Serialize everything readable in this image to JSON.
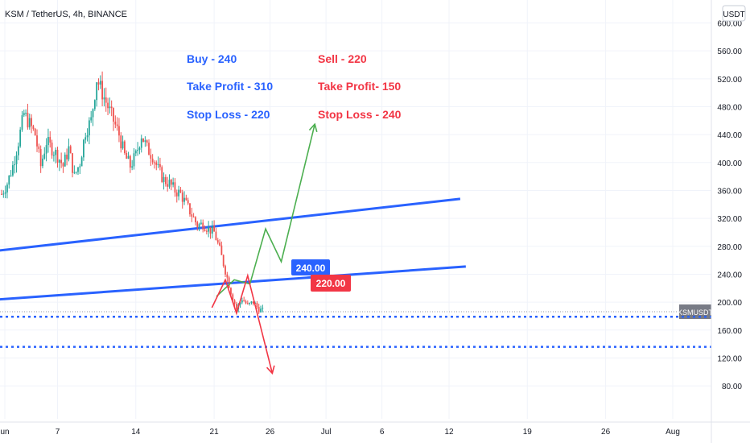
{
  "header": {
    "symbol_line": "KSM / TetherUS, 4h, BINANCE",
    "currency": "USDT"
  },
  "annotations": {
    "buy": [
      "Buy - 240",
      "Take Profit - 310",
      "Stop Loss - 220"
    ],
    "sell": [
      "Sell - 220",
      "Take Profit- 150",
      "Stop Loss - 240"
    ],
    "badge_blue": "240.00",
    "badge_red": "220.00"
  },
  "colors": {
    "up": "#26a69a",
    "down": "#ef5350",
    "blue": "#2962ff",
    "red": "#f23645",
    "green_path": "#4caf50",
    "trendline": "#2962ff",
    "dotted": "#2962ff"
  },
  "chart_data": {
    "type": "candlestick",
    "title": "KSM / TetherUS, 4h, BINANCE",
    "ylim": [
      70,
      620
    ],
    "y_ticks": [
      80,
      120,
      160,
      200,
      240,
      280,
      320,
      360,
      400,
      440,
      480,
      520,
      560,
      600
    ],
    "y_tick_labels": [
      "80.00",
      "120.00",
      "160.00",
      "200.00",
      "240.00",
      "280.00",
      "320.00",
      "360.00",
      "400.00",
      "440.00",
      "480.00",
      "520.00",
      "560.00",
      "600.00"
    ],
    "x_range_days": [
      -0.2,
      48
    ],
    "x_ticks": [
      {
        "day": 0,
        "label": "un"
      },
      {
        "day": 5,
        "label": "7"
      },
      {
        "day": 12,
        "label": "14"
      },
      {
        "day": 19,
        "label": "21"
      },
      {
        "day": 24,
        "label": "26"
      },
      {
        "day": 29,
        "label": "Jul"
      },
      {
        "day": 34,
        "label": "6"
      },
      {
        "day": 40,
        "label": "12"
      },
      {
        "day": 47,
        "label": "19"
      },
      {
        "day": 54,
        "label": "26"
      },
      {
        "day": 60,
        "label": "Aug"
      }
    ],
    "price_path": [
      {
        "day": 0,
        "price": 355
      },
      {
        "day": 0.5,
        "price": 370
      },
      {
        "day": 1,
        "price": 395
      },
      {
        "day": 1.5,
        "price": 430
      },
      {
        "day": 2,
        "price": 470
      },
      {
        "day": 2.5,
        "price": 455
      },
      {
        "day": 3,
        "price": 440
      },
      {
        "day": 3.5,
        "price": 395
      },
      {
        "day": 4,
        "price": 430
      },
      {
        "day": 4.5,
        "price": 420
      },
      {
        "day": 5,
        "price": 410
      },
      {
        "day": 5.5,
        "price": 395
      },
      {
        "day": 6,
        "price": 420
      },
      {
        "day": 6.5,
        "price": 380
      },
      {
        "day": 7,
        "price": 400
      },
      {
        "day": 7.5,
        "price": 445
      },
      {
        "day": 8,
        "price": 460
      },
      {
        "day": 8.5,
        "price": 520
      },
      {
        "day": 9,
        "price": 500
      },
      {
        "day": 9.5,
        "price": 480
      },
      {
        "day": 10,
        "price": 460
      },
      {
        "day": 10.5,
        "price": 440
      },
      {
        "day": 11,
        "price": 410
      },
      {
        "day": 11.5,
        "price": 395
      },
      {
        "day": 12,
        "price": 410
      },
      {
        "day": 12.5,
        "price": 440
      },
      {
        "day": 13,
        "price": 420
      },
      {
        "day": 13.5,
        "price": 410
      },
      {
        "day": 14,
        "price": 390
      },
      {
        "day": 14.5,
        "price": 375
      },
      {
        "day": 15,
        "price": 370
      },
      {
        "day": 15.5,
        "price": 360
      },
      {
        "day": 16,
        "price": 355
      },
      {
        "day": 16.5,
        "price": 340
      },
      {
        "day": 17,
        "price": 325
      },
      {
        "day": 17.5,
        "price": 310
      },
      {
        "day": 18,
        "price": 312
      },
      {
        "day": 18.5,
        "price": 305
      },
      {
        "day": 19,
        "price": 300
      },
      {
        "day": 19.5,
        "price": 275
      },
      {
        "day": 20,
        "price": 245
      },
      {
        "day": 20.5,
        "price": 215
      },
      {
        "day": 21,
        "price": 190
      },
      {
        "day": 21.5,
        "price": 205
      },
      {
        "day": 22,
        "price": 195
      },
      {
        "day": 22.5,
        "price": 200
      },
      {
        "day": 23,
        "price": 190
      },
      {
        "day": 23.5,
        "price": 186
      }
    ],
    "levels": [
      {
        "price": 186.25,
        "label": "186.25",
        "tag": "KSMUSDT",
        "style": "current"
      },
      {
        "price": 179.01,
        "label": "179.01",
        "style": "dotted"
      },
      {
        "price": 135.9,
        "label": "135.90",
        "style": "dotted"
      }
    ],
    "trendlines": [
      {
        "from": {
          "day": -0.2,
          "price": 274
        },
        "to": {
          "day": 41,
          "price": 348
        }
      },
      {
        "from": {
          "day": -0.2,
          "price": 204
        },
        "to": {
          "day": 41.5,
          "price": 251
        }
      }
    ],
    "projection_up": [
      {
        "day": 19.2,
        "price": 208
      },
      {
        "day": 20.8,
        "price": 232
      },
      {
        "day": 22.2,
        "price": 226
      },
      {
        "day": 23.6,
        "price": 305
      },
      {
        "day": 25.0,
        "price": 258
      },
      {
        "day": 28.0,
        "price": 455
      }
    ],
    "projection_down": [
      {
        "day": 18.8,
        "price": 192
      },
      {
        "day": 20.0,
        "price": 232
      },
      {
        "day": 21.0,
        "price": 184
      },
      {
        "day": 22.0,
        "price": 238
      },
      {
        "day": 24.2,
        "price": 98
      }
    ]
  }
}
